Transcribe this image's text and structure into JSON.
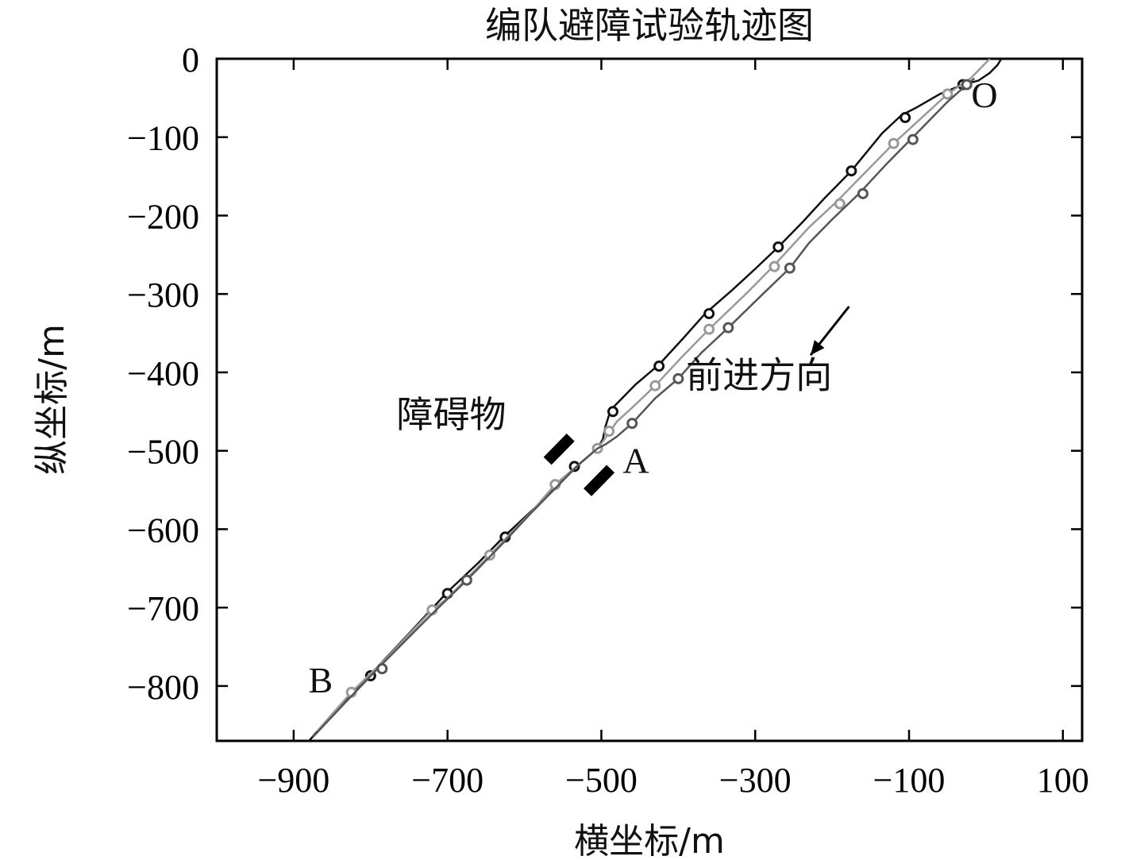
{
  "chart_data": {
    "type": "line",
    "title": "编队避障试验轨迹图",
    "xlabel": "横坐标/m",
    "ylabel": "纵坐标/m",
    "xlim": [
      -1000,
      125
    ],
    "ylim": [
      -870,
      0
    ],
    "xticks": [
      -900,
      -700,
      -500,
      -300,
      -100,
      100
    ],
    "yticks": [
      0,
      -100,
      -200,
      -300,
      -400,
      -500,
      -600,
      -700,
      -800
    ],
    "xtick_labels": [
      "−900",
      "−700",
      "−500",
      "−300",
      "−100",
      "100"
    ],
    "ytick_labels": [
      "0",
      "−100",
      "−200",
      "−300",
      "−400",
      "−500",
      "−600",
      "−700",
      "−800"
    ],
    "grid": false,
    "series": [
      {
        "color": "#111111",
        "points": [
          [
            20,
            0
          ],
          [
            15,
            -8
          ],
          [
            5,
            -18
          ],
          [
            -10,
            -28
          ],
          [
            -30,
            -33
          ],
          [
            -60,
            -45
          ],
          [
            -90,
            -62
          ],
          [
            -110,
            -72
          ],
          [
            -135,
            -95
          ],
          [
            -175,
            -143
          ],
          [
            -210,
            -178
          ],
          [
            -240,
            -210
          ],
          [
            -270,
            -240
          ],
          [
            -300,
            -268
          ],
          [
            -330,
            -295
          ],
          [
            -365,
            -325
          ],
          [
            -395,
            -358
          ],
          [
            -425,
            -390
          ],
          [
            -455,
            -415
          ],
          [
            -480,
            -440
          ],
          [
            -488,
            -448
          ],
          [
            -495,
            -470
          ],
          [
            -498,
            -485
          ],
          [
            -505,
            -497
          ],
          [
            -530,
            -518
          ],
          [
            -580,
            -567
          ],
          [
            -625,
            -608
          ],
          [
            -660,
            -643
          ],
          [
            -700,
            -680
          ],
          [
            -750,
            -733
          ],
          [
            -800,
            -785
          ],
          [
            -840,
            -825
          ],
          [
            -880,
            -870
          ]
        ],
        "markers": [
          [
            -30,
            -33
          ],
          [
            -105,
            -75
          ],
          [
            -175,
            -143
          ],
          [
            -270,
            -240
          ],
          [
            -360,
            -325
          ],
          [
            -425,
            -392
          ],
          [
            -485,
            -450
          ],
          [
            -535,
            -520
          ],
          [
            -625,
            -610
          ],
          [
            -700,
            -682
          ],
          [
            -800,
            -787
          ]
        ]
      },
      {
        "color": "#999999",
        "points": [
          [
            5,
            0
          ],
          [
            -5,
            -10
          ],
          [
            -20,
            -25
          ],
          [
            -50,
            -45
          ],
          [
            -80,
            -72
          ],
          [
            -120,
            -108
          ],
          [
            -160,
            -148
          ],
          [
            -195,
            -183
          ],
          [
            -230,
            -215
          ],
          [
            -275,
            -263
          ],
          [
            -310,
            -298
          ],
          [
            -360,
            -345
          ],
          [
            -395,
            -380
          ],
          [
            -430,
            -417
          ],
          [
            -460,
            -445
          ],
          [
            -480,
            -463
          ],
          [
            -490,
            -477
          ],
          [
            -498,
            -488
          ],
          [
            -505,
            -497
          ],
          [
            -530,
            -518
          ],
          [
            -560,
            -543
          ],
          [
            -590,
            -577
          ],
          [
            -640,
            -628
          ],
          [
            -700,
            -688
          ],
          [
            -720,
            -703
          ],
          [
            -780,
            -765
          ],
          [
            -825,
            -808
          ],
          [
            -870,
            -858
          ]
        ],
        "markers": [
          [
            -50,
            -45
          ],
          [
            -120,
            -108
          ],
          [
            -190,
            -185
          ],
          [
            -275,
            -265
          ],
          [
            -360,
            -345
          ],
          [
            -430,
            -417
          ],
          [
            -490,
            -475
          ],
          [
            -505,
            -497
          ],
          [
            -560,
            -543
          ],
          [
            -645,
            -633
          ],
          [
            -720,
            -703
          ],
          [
            -825,
            -808
          ]
        ]
      },
      {
        "color": "#555555",
        "points": [
          [
            -15,
            -25
          ],
          [
            -25,
            -33
          ],
          [
            -50,
            -55
          ],
          [
            -80,
            -85
          ],
          [
            -100,
            -105
          ],
          [
            -130,
            -135
          ],
          [
            -165,
            -172
          ],
          [
            -200,
            -205
          ],
          [
            -230,
            -235
          ],
          [
            -255,
            -267
          ],
          [
            -290,
            -300
          ],
          [
            -335,
            -343
          ],
          [
            -370,
            -375
          ],
          [
            -400,
            -408
          ],
          [
            -430,
            -433
          ],
          [
            -460,
            -465
          ],
          [
            -480,
            -482
          ],
          [
            -495,
            -492
          ],
          [
            -505,
            -497
          ],
          [
            -530,
            -518
          ],
          [
            -590,
            -578
          ],
          [
            -630,
            -620
          ],
          [
            -675,
            -665
          ],
          [
            -720,
            -708
          ],
          [
            -790,
            -777
          ],
          [
            -830,
            -818
          ],
          [
            -875,
            -865
          ]
        ],
        "markers": [
          [
            -25,
            -33
          ],
          [
            -95,
            -103
          ],
          [
            -160,
            -172
          ],
          [
            -255,
            -267
          ],
          [
            -335,
            -343
          ],
          [
            -400,
            -408
          ],
          [
            -460,
            -465
          ],
          [
            -675,
            -665
          ],
          [
            -785,
            -778
          ]
        ]
      }
    ],
    "annotations": [
      {
        "text": "O",
        "x": -2,
        "y": -62
      },
      {
        "text": "A",
        "x": -455,
        "y": -528
      },
      {
        "text": "B",
        "x": -865,
        "y": -808
      },
      {
        "text": "障碍物",
        "x": -695,
        "y": -470
      },
      {
        "text": "前进方向",
        "x": -295,
        "y": -420
      }
    ],
    "obstacles": [
      {
        "x1": -570,
        "y1": -513,
        "x2": -540,
        "y2": -483
      },
      {
        "x1": -518,
        "y1": -553,
        "x2": -488,
        "y2": -523
      }
    ],
    "arrow": {
      "x1": -178,
      "y1": -316,
      "x2": -228,
      "y2": -378
    }
  }
}
